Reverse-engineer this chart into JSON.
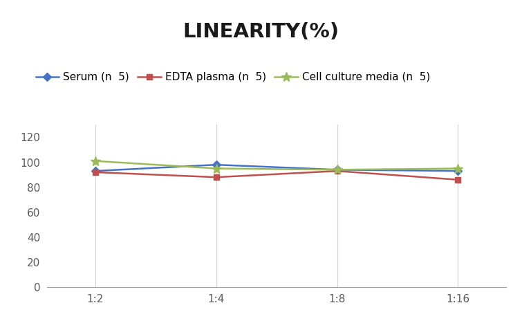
{
  "title": "LINEARITY(%)",
  "title_fontsize": 21,
  "title_fontweight": "bold",
  "x_labels": [
    "1:2",
    "1:4",
    "1:8",
    "1:16"
  ],
  "x_positions": [
    0,
    1,
    2,
    3
  ],
  "series": [
    {
      "label": "Serum (n 5)",
      "values": [
        93,
        98,
        94,
        93
      ],
      "color": "#4472C4",
      "marker": "D",
      "markersize": 6,
      "linewidth": 1.8
    },
    {
      "label": "EDTA plasma (n 5)",
      "values": [
        92,
        88,
        93,
        86
      ],
      "color": "#C0504D",
      "marker": "s",
      "markersize": 6,
      "linewidth": 1.8
    },
    {
      "label": "Cell culture media (n 5)",
      "values": [
        101,
        95,
        94,
        95
      ],
      "color": "#9BBB59",
      "marker": "*",
      "markersize": 10,
      "linewidth": 1.8
    }
  ],
  "ylim": [
    0,
    130
  ],
  "yticks": [
    0,
    20,
    40,
    60,
    80,
    100,
    120
  ],
  "background_color": "#ffffff",
  "grid_color": "#d3d3d3",
  "legend_fontsize": 11,
  "axis_label_color": "#595959",
  "tick_fontsize": 11
}
